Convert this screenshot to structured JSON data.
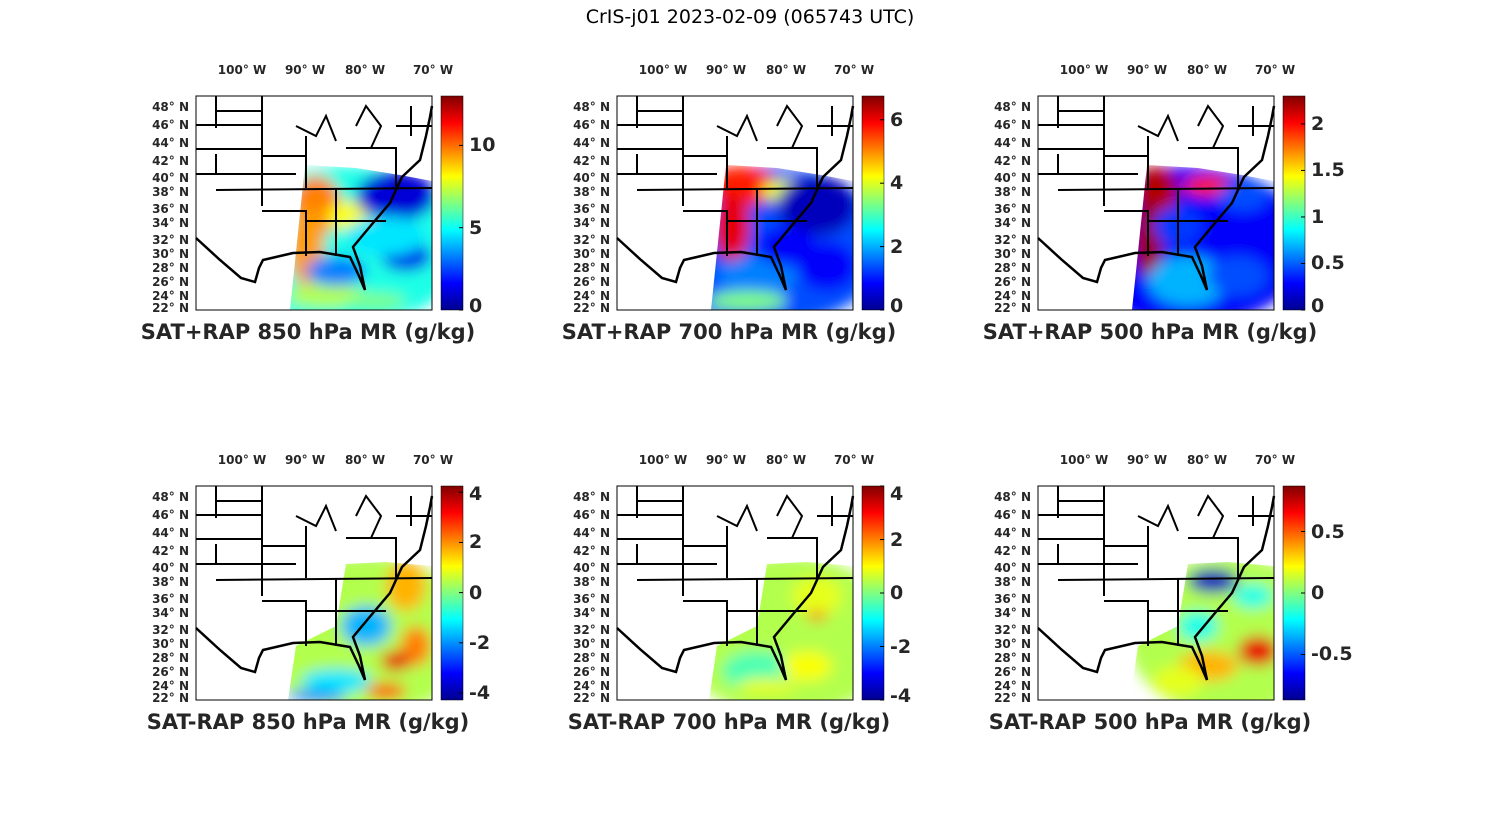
{
  "suptitle": "CrIS-j01 2023-02-09 (065743 UTC)",
  "lon_labels": [
    "100° W",
    "90° W",
    "80° W",
    "70° W"
  ],
  "lat_labels": [
    "48° N",
    "46° N",
    "44° N",
    "42° N",
    "40° N",
    "38° N",
    "36° N",
    "34° N",
    "32° N",
    "30° N",
    "28° N",
    "26° N",
    "24° N",
    "22° N"
  ],
  "colormap": "jet",
  "chart_data": [
    {
      "type": "heatmap",
      "title": "SAT+RAP 850 hPa MR (g/kg)",
      "colorbar_range": [
        0,
        13
      ],
      "colorbar_ticks": [
        0,
        5,
        10
      ],
      "colorbar_tick_labels": [
        "0",
        "5",
        "10"
      ]
    },
    {
      "type": "heatmap",
      "title": "SAT+RAP 700 hPa MR (g/kg)",
      "colorbar_range": [
        0,
        6.75
      ],
      "colorbar_ticks": [
        0,
        2,
        4,
        6
      ],
      "colorbar_tick_labels": [
        "0",
        "2",
        "4",
        "6"
      ]
    },
    {
      "type": "heatmap",
      "title": "SAT+RAP 500 hPa MR (g/kg)",
      "colorbar_range": [
        0,
        2.3
      ],
      "colorbar_ticks": [
        0,
        0.5,
        1,
        1.5,
        2
      ],
      "colorbar_tick_labels": [
        "0",
        "0.5",
        "1",
        "1.5",
        "2"
      ]
    },
    {
      "type": "heatmap",
      "title": "SAT-RAP 850 hPa MR (g/kg)",
      "colorbar_range": [
        -4.28,
        4.25
      ],
      "colorbar_ticks": [
        -4,
        -2,
        0,
        2,
        4
      ],
      "colorbar_tick_labels": [
        "-4",
        "-2",
        "0",
        "2",
        "4"
      ]
    },
    {
      "type": "heatmap",
      "title": "SAT-RAP 700 hPa MR (g/kg)",
      "colorbar_range": [
        -4,
        4
      ],
      "colorbar_ticks": [
        -4,
        -2,
        0,
        2,
        4
      ],
      "colorbar_tick_labels": [
        "-4",
        "-2",
        "0",
        "2",
        "4"
      ]
    },
    {
      "type": "heatmap",
      "title": "SAT-RAP 500 hPa MR (g/kg)",
      "colorbar_range": [
        -0.87,
        0.87
      ],
      "colorbar_ticks": [
        -0.5,
        0,
        0.5
      ],
      "colorbar_tick_labels": [
        "-0.5",
        "0",
        "0.5"
      ]
    }
  ]
}
